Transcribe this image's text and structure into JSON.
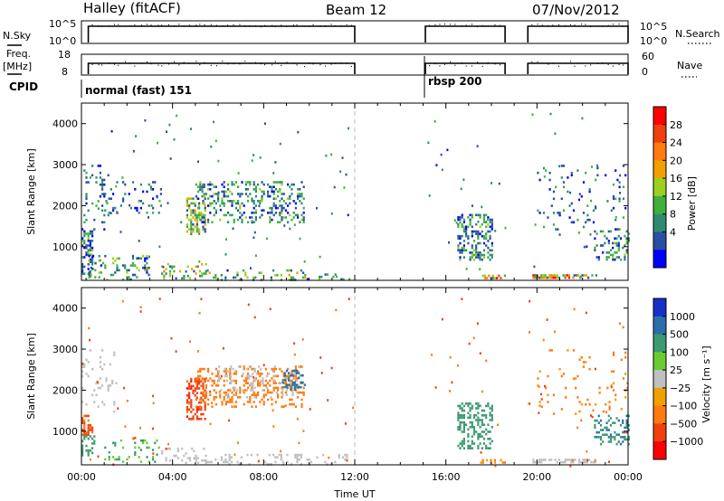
{
  "header": {
    "station": "Halley (fitACF)",
    "beam": "Beam 12",
    "date": "07/Nov/2012"
  },
  "sky_panel": {
    "left_label": "N.Sky",
    "left_ticks": [
      "10^5",
      "10^0"
    ],
    "right_label": "N.Search",
    "right_ticks": [
      "10^5",
      "10^0"
    ],
    "active_segments_ut": [
      [
        0.3,
        12.0
      ],
      [
        15.1,
        18.6
      ],
      [
        19.6,
        24.0
      ]
    ]
  },
  "freq_panel": {
    "left_label_line1": "Freq.",
    "left_label_line2": "[MHz]",
    "left_ticks": [
      "18",
      "8"
    ],
    "right_label": "Nave",
    "right_ticks": [
      "60",
      "0"
    ]
  },
  "cpid_panel": {
    "label": "CPID",
    "modes": [
      {
        "name": "normal (fast) 151",
        "start_ut": 0.0,
        "end_ut": 15.1
      },
      {
        "name": "rbsp 200",
        "start_ut": 15.1,
        "end_ut": 24.0
      }
    ]
  },
  "colors": {
    "power_scale": [
      "#0000ff",
      "#2a4fa0",
      "#2f8a70",
      "#40b03c",
      "#9ad020",
      "#f0a000",
      "#ff7a10",
      "#f04010",
      "#ff0000"
    ],
    "velocity_scale": [
      "#1530c8",
      "#2c6fa8",
      "#3d9a70",
      "#6acc30",
      "#c0c0c0",
      "#f0a000",
      "#ff7a10",
      "#f04010",
      "#ff0000"
    ]
  },
  "chart_data": [
    {
      "type": "heatmap",
      "name": "power",
      "ylabel": "Slant Range [km]",
      "xlim": [
        0,
        24
      ],
      "ylim": [
        180,
        4500
      ],
      "y_ticks": [
        1000,
        2000,
        3000,
        4000
      ],
      "x_ticks": [
        "00:00",
        "04:00",
        "08:00",
        "12:00",
        "16:00",
        "20:00",
        "00:00"
      ],
      "colorbar": {
        "label": "Power [dB]",
        "ticks": [
          "28",
          "24",
          "20",
          "16",
          "12",
          "8",
          "4"
        ],
        "range": [
          0,
          30
        ]
      },
      "clusters": [
        {
          "t": [
            0.0,
            0.5
          ],
          "r": [
            300,
            1400
          ],
          "value": 8,
          "density": 0.5
        },
        {
          "t": [
            0.0,
            1.2
          ],
          "r": [
            1400,
            3000
          ],
          "value": 6,
          "density": 0.12
        },
        {
          "t": [
            0.3,
            3.0
          ],
          "r": [
            200,
            800
          ],
          "value": 10,
          "density": 0.2
        },
        {
          "t": [
            1.0,
            3.5
          ],
          "r": [
            1800,
            2600
          ],
          "value": 6,
          "density": 0.12
        },
        {
          "t": [
            3.5,
            5.5
          ],
          "r": [
            200,
            600
          ],
          "value": 14,
          "density": 0.25
        },
        {
          "t": [
            4.6,
            5.4
          ],
          "r": [
            1300,
            2200
          ],
          "value": 12,
          "density": 0.45
        },
        {
          "t": [
            5.0,
            9.8
          ],
          "r": [
            1600,
            2600
          ],
          "value": 8,
          "density": 0.28
        },
        {
          "t": [
            5.5,
            9.8
          ],
          "r": [
            200,
            450
          ],
          "value": 10,
          "density": 0.2
        },
        {
          "t": [
            9.8,
            11.8
          ],
          "r": [
            200,
            350
          ],
          "value": 8,
          "density": 0.15
        },
        {
          "t": [
            16.5,
            18.0
          ],
          "r": [
            700,
            1800
          ],
          "value": 8,
          "density": 0.35
        },
        {
          "t": [
            17.5,
            18.6
          ],
          "r": [
            220,
            320
          ],
          "value": 18,
          "density": 0.6
        },
        {
          "t": [
            19.8,
            21.6
          ],
          "r": [
            220,
            330
          ],
          "value": 22,
          "density": 0.7
        },
        {
          "t": [
            21.6,
            22.6
          ],
          "r": [
            220,
            330
          ],
          "value": 12,
          "density": 0.4
        },
        {
          "t": [
            22.5,
            24.0
          ],
          "r": [
            700,
            1400
          ],
          "value": 8,
          "density": 0.3
        },
        {
          "t": [
            20.0,
            24.0
          ],
          "r": [
            1400,
            3000
          ],
          "value": 6,
          "density": 0.05
        }
      ]
    },
    {
      "type": "heatmap",
      "name": "velocity",
      "ylabel": "Slant Range [km]",
      "xlabel": "Time UT",
      "xlim": [
        0,
        24
      ],
      "ylim": [
        180,
        4500
      ],
      "y_ticks": [
        1000,
        2000,
        3000,
        4000
      ],
      "x_ticks": [
        "00:00",
        "04:00",
        "08:00",
        "12:00",
        "16:00",
        "20:00",
        "00:00"
      ],
      "colorbar": {
        "label": "Velocity [m s⁻¹]",
        "ticks": [
          "1000",
          "500",
          "100",
          "25",
          "−25",
          "−100",
          "−500",
          "−1000"
        ],
        "range": [
          -1000,
          1000
        ]
      },
      "clusters": [
        {
          "t": [
            0.0,
            0.5
          ],
          "r": [
            900,
            1400
          ],
          "value": -300,
          "density": 0.5
        },
        {
          "t": [
            0.0,
            0.6
          ],
          "r": [
            400,
            900
          ],
          "value": 150,
          "density": 0.45
        },
        {
          "t": [
            0.0,
            1.5
          ],
          "r": [
            1500,
            3000
          ],
          "value": 0,
          "density": 0.1
        },
        {
          "t": [
            1.0,
            3.5
          ],
          "r": [
            250,
            800
          ],
          "value": 50,
          "density": 0.2
        },
        {
          "t": [
            3.5,
            5.5
          ],
          "r": [
            200,
            600
          ],
          "value": 0,
          "density": 0.25
        },
        {
          "t": [
            4.6,
            5.4
          ],
          "r": [
            1300,
            2300
          ],
          "value": -500,
          "density": 0.5
        },
        {
          "t": [
            5.0,
            9.8
          ],
          "r": [
            1600,
            2600
          ],
          "value": -120,
          "density": 0.25
        },
        {
          "t": [
            6.0,
            9.5
          ],
          "r": [
            1800,
            2600
          ],
          "value": 0,
          "density": 0.15
        },
        {
          "t": [
            8.8,
            9.8
          ],
          "r": [
            2000,
            2500
          ],
          "value": 400,
          "density": 0.3
        },
        {
          "t": [
            5.5,
            11.8
          ],
          "r": [
            200,
            450
          ],
          "value": 0,
          "density": 0.2
        },
        {
          "t": [
            16.5,
            18.0
          ],
          "r": [
            600,
            1700
          ],
          "value": 120,
          "density": 0.35
        },
        {
          "t": [
            17.5,
            18.6
          ],
          "r": [
            220,
            320
          ],
          "value": -60,
          "density": 0.5
        },
        {
          "t": [
            19.8,
            22.6
          ],
          "r": [
            220,
            330
          ],
          "value": 0,
          "density": 0.6
        },
        {
          "t": [
            22.5,
            24.0
          ],
          "r": [
            700,
            1400
          ],
          "value": 300,
          "density": 0.3
        },
        {
          "t": [
            20.0,
            24.0
          ],
          "r": [
            1400,
            3000
          ],
          "value": -80,
          "density": 0.05
        }
      ]
    }
  ]
}
